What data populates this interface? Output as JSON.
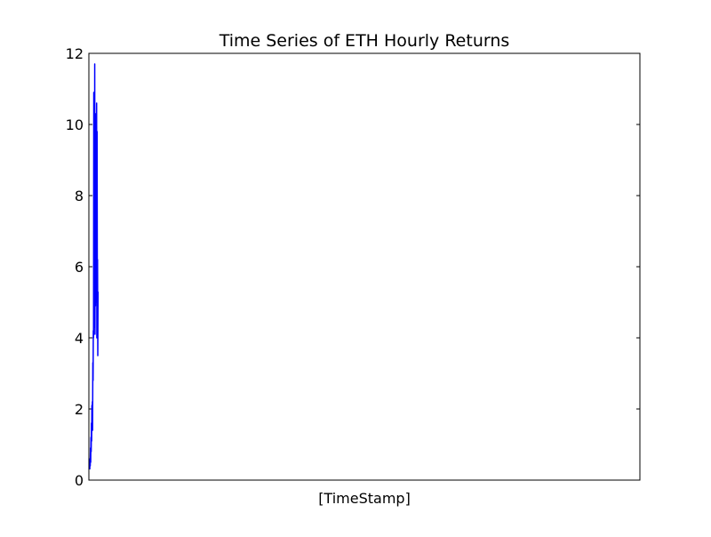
{
  "chart_data": {
    "type": "line",
    "title": "Time Series of ETH Hourly Returns",
    "xlabel": "[TimeStamp]",
    "ylabel": "",
    "ylim": [
      0,
      12
    ],
    "yticks": [
      0,
      2,
      4,
      6,
      8,
      10,
      12
    ],
    "xticks": [],
    "grid": false,
    "legend": "none",
    "line_color": "#0000ff",
    "series": [
      {
        "values": [
          0.3,
          0.6,
          0.4,
          0.9,
          0.5,
          1.2,
          0.8,
          1.6,
          1.1,
          2.1,
          1.5,
          2.2,
          1.4,
          3.3,
          2.8,
          4.2,
          4.0,
          10.9,
          4.3,
          9.7,
          5.1,
          11.7,
          4.1,
          9.2,
          4.9,
          10.3,
          5.0,
          8.6,
          5.2,
          10.6,
          4.0,
          9.8,
          5.6,
          6.2,
          3.5,
          5.3
        ],
        "xlim_fraction_used": 0.015
      }
    ]
  }
}
